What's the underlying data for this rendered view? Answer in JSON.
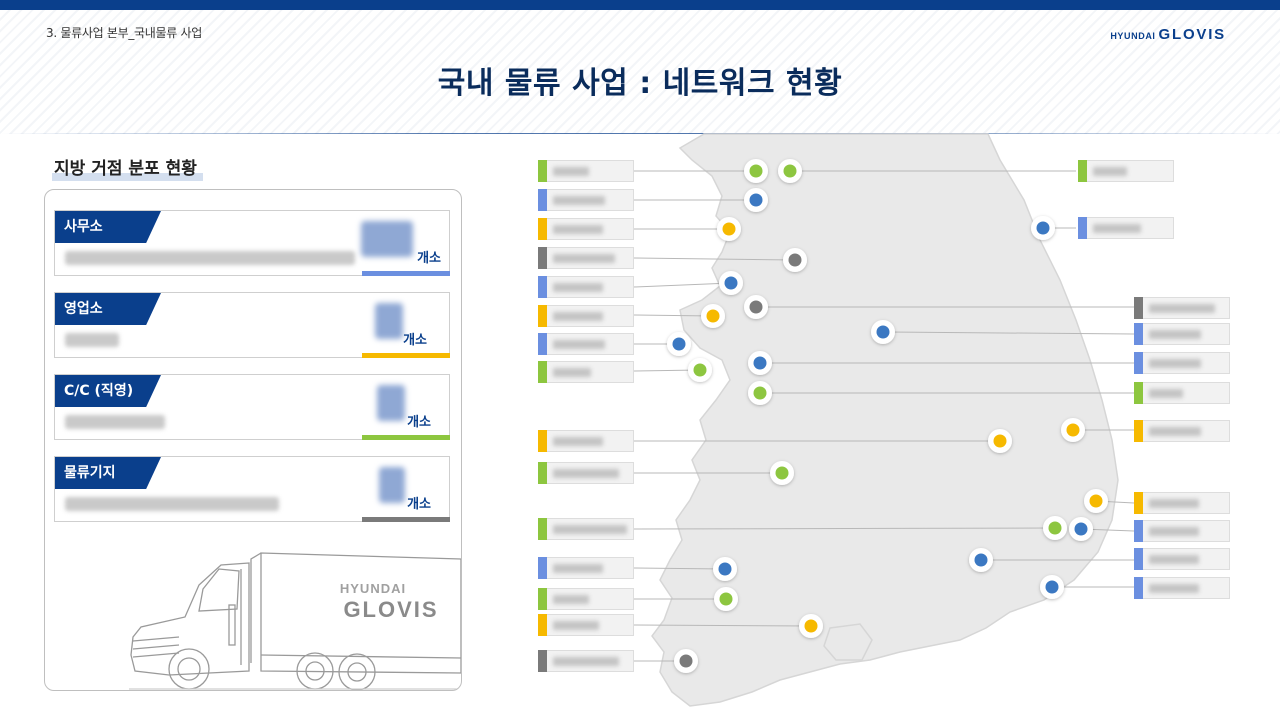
{
  "header": {
    "breadcrumb": "3. 물류사업 본부_국내물류 사업",
    "logo_hyundai": "HYUNDAI",
    "logo_glovis": "GLOVIS",
    "title": "국내 물류 사업 : 네트워크 현황"
  },
  "section": {
    "title": "지방 거점 분포 현황"
  },
  "cards": [
    {
      "label": "사무소",
      "unit": "개소",
      "color": "#6b8fe0"
    },
    {
      "label": "영업소",
      "unit": "개소",
      "color": "#f6b900"
    },
    {
      "label": "C/C (직영)",
      "unit": "개소",
      "color": "#8dc63f"
    },
    {
      "label": "물류기지",
      "unit": "개소",
      "color": "#7a7a7a"
    }
  ],
  "truck": {
    "brand_top": "HYUNDAI",
    "brand_bottom": "GLOVIS"
  },
  "legend_colors": {
    "office": "#3a78c2",
    "sales": "#f6b900",
    "cc": "#8dc63f",
    "base": "#7a7a7a"
  }
}
